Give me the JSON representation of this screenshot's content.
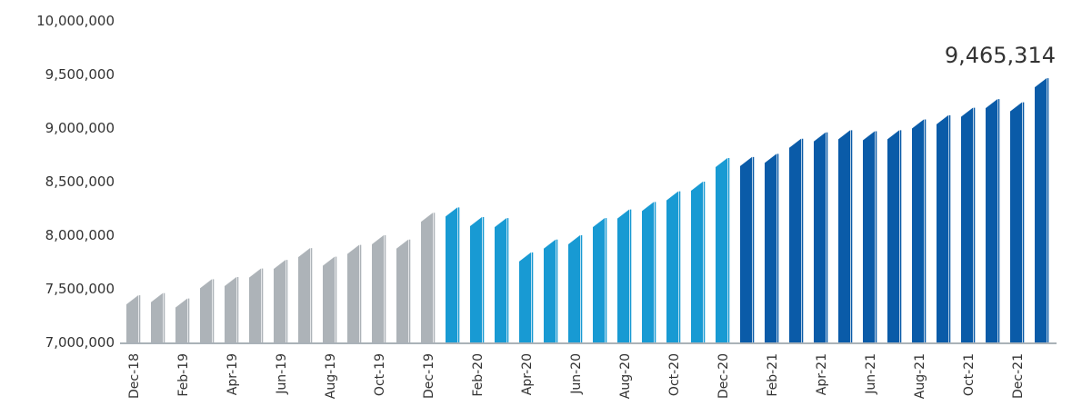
{
  "chart_data": {
    "type": "bar",
    "ylim": [
      7000000,
      10000000
    ],
    "y_ticks": [
      "7,000,000",
      "7,500,000",
      "8,000,000",
      "8,500,000",
      "9,000,000",
      "9,500,000",
      "10,000,000"
    ],
    "y_tick_values": [
      7000000,
      7500000,
      8000000,
      8500000,
      9000000,
      9500000,
      10000000
    ],
    "x_tick_labels": [
      "Dec-18",
      "Feb-19",
      "Apr-19",
      "Jun-19",
      "Aug-19",
      "Oct-19",
      "Dec-19",
      "Feb-20",
      "Apr-20",
      "Jun-20",
      "Aug-20",
      "Oct-20",
      "Dec-20",
      "Feb-21",
      "Apr-21",
      "Jun-21",
      "Aug-21",
      "Oct-21",
      "Dec-21"
    ],
    "categories": [
      "Dec-18",
      "Jan-19",
      "Feb-19",
      "Mar-19",
      "Apr-19",
      "May-19",
      "Jun-19",
      "Jul-19",
      "Aug-19",
      "Sep-19",
      "Oct-19",
      "Nov-19",
      "Dec-19",
      "Jan-20",
      "Feb-20",
      "Mar-20",
      "Apr-20",
      "May-20",
      "Jun-20",
      "Jul-20",
      "Aug-20",
      "Sep-20",
      "Oct-20",
      "Nov-20",
      "Dec-20",
      "Jan-21",
      "Feb-21",
      "Mar-21",
      "Apr-21",
      "May-21",
      "Jun-21",
      "Jul-21",
      "Aug-21",
      "Sep-21",
      "Oct-21",
      "Nov-21",
      "Dec-21",
      "Jan-22"
    ],
    "values": [
      7440000,
      7460000,
      7410000,
      7590000,
      7610000,
      7690000,
      7770000,
      7880000,
      7800000,
      7910000,
      8000000,
      7960000,
      8210000,
      8260000,
      8170000,
      8160000,
      7840000,
      7960000,
      8000000,
      8160000,
      8240000,
      8310000,
      8410000,
      8500000,
      8720000,
      8730000,
      8760000,
      8900000,
      8960000,
      8980000,
      8970000,
      8980000,
      9080000,
      9120000,
      9190000,
      9270000,
      9240000,
      9465314
    ],
    "colors": {
      "2019": "#adb3b8",
      "2020": "#189ad3",
      "2021": "#0a5ba8",
      "axis": "#aab2b8",
      "text": "#333333"
    },
    "annotation": {
      "text": "9,465,314",
      "category": "Jan-22"
    },
    "grid": false
  }
}
